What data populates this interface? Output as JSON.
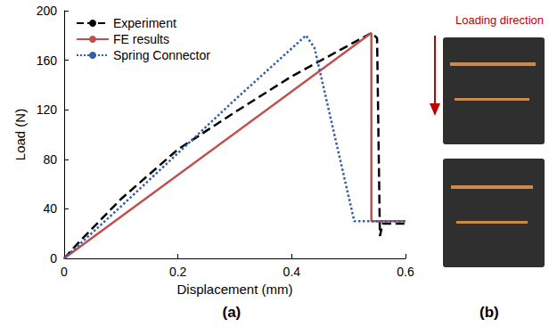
{
  "chart_data": {
    "type": "line",
    "panel_label": "(a)",
    "xlabel": "Displacement (mm)",
    "ylabel": "Load (N)",
    "xlim": [
      0,
      0.6
    ],
    "xticks": [
      0,
      0.2,
      0.4,
      0.6
    ],
    "ylim": [
      0,
      200
    ],
    "yticks": [
      0,
      40,
      80,
      120,
      160,
      200
    ],
    "grid": false,
    "legend": "upper left",
    "series": [
      {
        "name": "Experiment",
        "color": "#000000",
        "line_style": "dashed",
        "x": [
          0,
          0.03,
          0.1,
          0.2,
          0.3,
          0.4,
          0.5,
          0.54,
          0.55,
          0.555,
          0.56,
          0.6
        ],
        "values": [
          0,
          15,
          48,
          88,
          118,
          147,
          172,
          182,
          178,
          18,
          28,
          28
        ]
      },
      {
        "name": "FE results",
        "color": "#c0504d",
        "line_style": "solid",
        "x": [
          0,
          0.54,
          0.54,
          0.6
        ],
        "values": [
          0,
          182,
          30,
          30
        ]
      },
      {
        "name": "Spring Connector",
        "color": "#2e5fa8",
        "line_style": "dotted",
        "x": [
          0,
          0.1,
          0.2,
          0.3,
          0.425,
          0.44,
          0.51,
          0.6
        ],
        "values": [
          0,
          42,
          85,
          128,
          180,
          170,
          30,
          30
        ]
      }
    ]
  },
  "photo": {
    "panel_label": "(b)",
    "annotation": "Loading direction",
    "annotation_color": "#c00000"
  }
}
